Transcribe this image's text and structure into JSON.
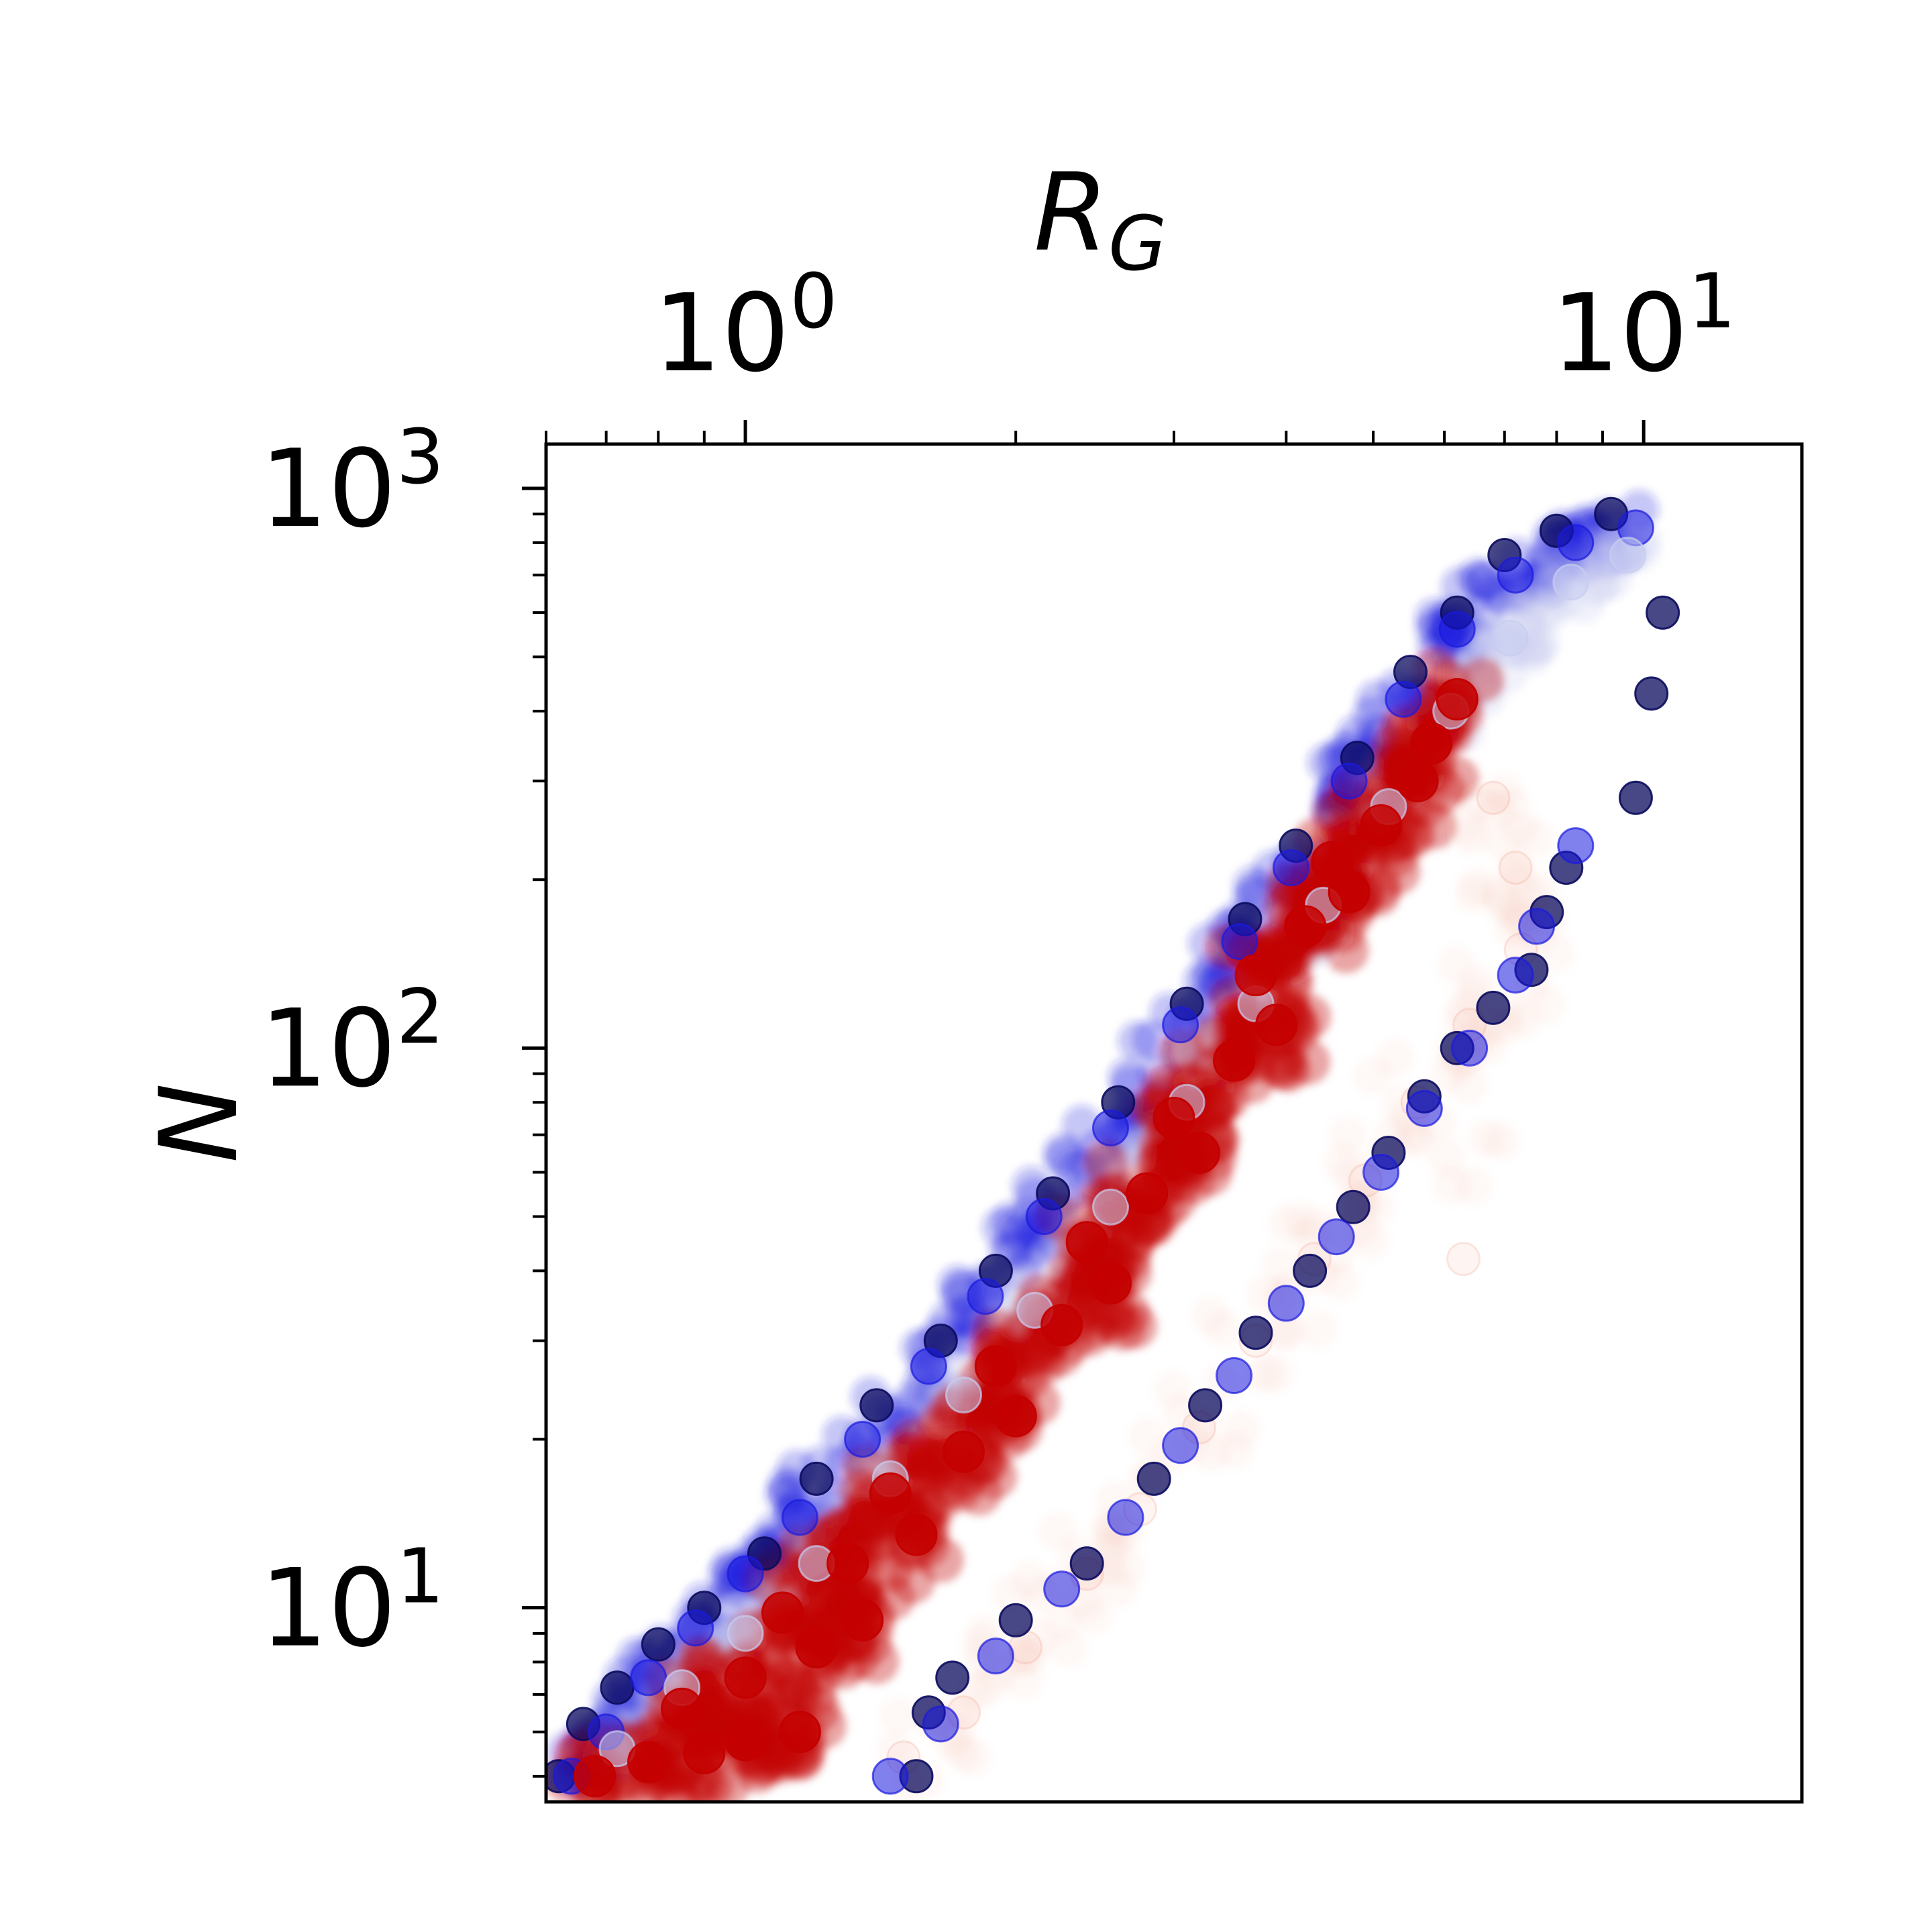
{
  "chart_data": {
    "type": "scatter",
    "x_scale": "log",
    "y_scale": "log",
    "xlabel": "R",
    "xlabel_subscript": "G",
    "ylabel": "N",
    "xlim": [
      0.6,
      15
    ],
    "ylim": [
      4.5,
      1200
    ],
    "x_axis_position": "top",
    "grid": false,
    "legend": "none",
    "x_ticks": [
      {
        "value": 1,
        "base": "10",
        "exp": "0"
      },
      {
        "value": 10,
        "base": "10",
        "exp": "1"
      }
    ],
    "y_ticks": [
      {
        "value": 10,
        "base": "10",
        "exp": "1"
      },
      {
        "value": 100,
        "base": "10",
        "exp": "2"
      },
      {
        "value": 1000,
        "base": "10",
        "exp": "3"
      }
    ],
    "colors": {
      "dark_navy": "#0b0b5e",
      "blue": "#1a1ae0",
      "light_blue": "#c8cdf0",
      "red": "#c40000",
      "light_red": "#f3a08c"
    },
    "series": [
      {
        "color_key": "dark_navy",
        "role": "upper envelope",
        "points": [
          [
            0.62,
            5.0
          ],
          [
            0.66,
            6.2
          ],
          [
            0.72,
            7.2
          ],
          [
            0.8,
            8.6
          ],
          [
            0.9,
            10.0
          ],
          [
            1.05,
            12.5
          ],
          [
            1.2,
            17.0
          ],
          [
            1.4,
            23.0
          ],
          [
            1.65,
            30.0
          ],
          [
            1.9,
            40.0
          ],
          [
            2.2,
            55.0
          ],
          [
            2.6,
            80.0
          ],
          [
            3.1,
            120.0
          ],
          [
            3.6,
            170.0
          ],
          [
            4.1,
            230.0
          ],
          [
            4.8,
            330.0
          ],
          [
            5.5,
            470.0
          ],
          [
            6.2,
            600.0
          ],
          [
            7.0,
            760.0
          ],
          [
            8.0,
            840.0
          ],
          [
            9.2,
            900.0
          ]
        ]
      },
      {
        "color_key": "blue",
        "role": "upper band",
        "points": [
          [
            0.64,
            5.0
          ],
          [
            0.7,
            6.0
          ],
          [
            0.78,
            7.5
          ],
          [
            0.88,
            9.2
          ],
          [
            1.0,
            11.5
          ],
          [
            1.15,
            14.5
          ],
          [
            1.35,
            20.0
          ],
          [
            1.6,
            27.0
          ],
          [
            1.85,
            36.0
          ],
          [
            2.15,
            50.0
          ],
          [
            2.55,
            72.0
          ],
          [
            3.05,
            110.0
          ],
          [
            3.55,
            155.0
          ],
          [
            4.05,
            210.0
          ],
          [
            4.7,
            300.0
          ],
          [
            5.4,
            420.0
          ],
          [
            6.2,
            560.0
          ],
          [
            7.2,
            700.0
          ],
          [
            8.4,
            800.0
          ],
          [
            9.8,
            850.0
          ]
        ]
      },
      {
        "color_key": "light_blue",
        "role": "ridge",
        "points": [
          [
            0.72,
            5.6
          ],
          [
            0.85,
            7.2
          ],
          [
            1.0,
            9.0
          ],
          [
            1.2,
            12.0
          ],
          [
            1.45,
            17.0
          ],
          [
            1.75,
            24.0
          ],
          [
            2.1,
            34.0
          ],
          [
            2.55,
            52.0
          ],
          [
            3.1,
            80.0
          ],
          [
            3.7,
            120.0
          ],
          [
            4.4,
            180.0
          ],
          [
            5.2,
            270.0
          ],
          [
            6.1,
            400.0
          ],
          [
            7.1,
            540.0
          ],
          [
            8.3,
            680.0
          ],
          [
            9.6,
            760.0
          ]
        ]
      },
      {
        "color_key": "red",
        "role": "core",
        "points": [
          [
            0.68,
            5.0
          ],
          [
            0.78,
            5.3
          ],
          [
            0.9,
            5.5
          ],
          [
            1.0,
            5.8
          ],
          [
            1.15,
            6.0
          ],
          [
            0.85,
            6.6
          ],
          [
            1.0,
            7.5
          ],
          [
            1.2,
            8.5
          ],
          [
            1.35,
            9.5
          ],
          [
            1.1,
            9.8
          ],
          [
            1.3,
            12.0
          ],
          [
            1.55,
            13.5
          ],
          [
            1.45,
            16.0
          ],
          [
            1.75,
            19.0
          ],
          [
            2.0,
            22.0
          ],
          [
            1.9,
            27.0
          ],
          [
            2.25,
            32.0
          ],
          [
            2.55,
            38.0
          ],
          [
            2.4,
            45.0
          ],
          [
            2.8,
            55.0
          ],
          [
            3.2,
            65.0
          ],
          [
            3.0,
            75.0
          ],
          [
            3.5,
            95.0
          ],
          [
            3.9,
            110.0
          ],
          [
            3.7,
            135.0
          ],
          [
            4.2,
            165.0
          ],
          [
            4.7,
            190.0
          ],
          [
            4.5,
            215.0
          ],
          [
            5.1,
            250.0
          ],
          [
            5.6,
            300.0
          ],
          [
            5.8,
            350.0
          ],
          [
            6.2,
            420.0
          ]
        ]
      },
      {
        "color_key": "light_red",
        "role": "lower halo",
        "points": [
          [
            1.5,
            5.4
          ],
          [
            1.75,
            6.5
          ],
          [
            2.05,
            8.5
          ],
          [
            2.4,
            11.5
          ],
          [
            2.75,
            15.0
          ],
          [
            3.2,
            21.0
          ],
          [
            3.7,
            30.0
          ],
          [
            4.3,
            42.0
          ],
          [
            4.9,
            58.0
          ],
          [
            5.6,
            80.0
          ],
          [
            6.4,
            110.0
          ],
          [
            7.3,
            150.0
          ],
          [
            7.2,
            210.0
          ],
          [
            6.8,
            280.0
          ],
          [
            6.3,
            42.0
          ]
        ]
      },
      {
        "color_key": "dark_navy",
        "role": "lower outliers",
        "points": [
          [
            1.55,
            5.0
          ],
          [
            1.6,
            6.5
          ],
          [
            1.7,
            7.5
          ],
          [
            2.0,
            9.5
          ],
          [
            2.4,
            12.0
          ],
          [
            2.85,
            17.0
          ],
          [
            3.25,
            23.0
          ],
          [
            3.7,
            31.0
          ],
          [
            4.25,
            40.0
          ],
          [
            4.75,
            52.0
          ],
          [
            5.2,
            65.0
          ],
          [
            5.7,
            82.0
          ],
          [
            6.2,
            100.0
          ],
          [
            6.8,
            118.0
          ],
          [
            7.5,
            138.0
          ],
          [
            7.8,
            175.0
          ],
          [
            8.2,
            210.0
          ],
          [
            9.8,
            280.0
          ],
          [
            10.2,
            430.0
          ],
          [
            10.5,
            600.0
          ]
        ]
      },
      {
        "color_key": "blue",
        "role": "lower band",
        "points": [
          [
            1.45,
            5.0
          ],
          [
            1.65,
            6.2
          ],
          [
            1.9,
            8.2
          ],
          [
            2.25,
            10.8
          ],
          [
            2.65,
            14.5
          ],
          [
            3.05,
            19.5
          ],
          [
            3.5,
            26.0
          ],
          [
            4.0,
            35.0
          ],
          [
            4.55,
            46.0
          ],
          [
            5.1,
            60.0
          ],
          [
            5.7,
            78.0
          ],
          [
            6.4,
            100.0
          ],
          [
            7.2,
            135.0
          ],
          [
            7.6,
            165.0
          ],
          [
            8.4,
            230.0
          ]
        ]
      }
    ]
  }
}
